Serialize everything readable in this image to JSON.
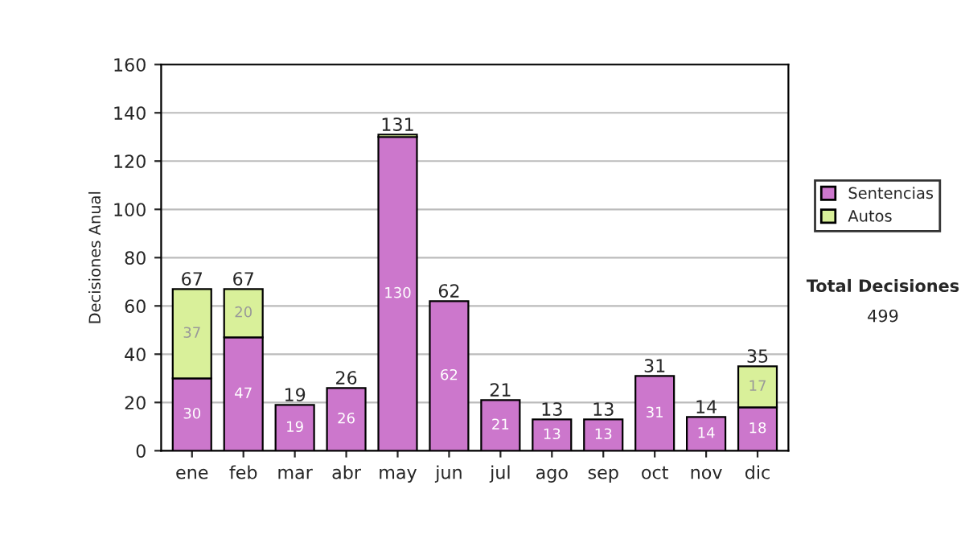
{
  "chart_data": {
    "type": "bar",
    "stacked": true,
    "ylabel": "Decisiones Anual",
    "categories": [
      "ene",
      "feb",
      "mar",
      "abr",
      "may",
      "jun",
      "jul",
      "ago",
      "sep",
      "oct",
      "nov",
      "dic"
    ],
    "series": [
      {
        "name": "Sentencias",
        "color": "#cc77cc",
        "values": [
          30,
          47,
          19,
          26,
          130,
          62,
          21,
          13,
          13,
          31,
          14,
          18
        ],
        "value_labels": [
          "30",
          "47",
          "19",
          "26",
          "130",
          "62",
          "21",
          "13",
          "13",
          "31",
          "14",
          "18"
        ]
      },
      {
        "name": "Autos",
        "color": "#d9f09a",
        "values": [
          37,
          20,
          0,
          0,
          1,
          0,
          0,
          0,
          0,
          0,
          0,
          17
        ],
        "value_labels": [
          "37",
          "20",
          null,
          null,
          null,
          null,
          null,
          null,
          null,
          null,
          null,
          "17"
        ]
      }
    ],
    "totals": [
      "67",
      "67",
      "19",
      "26",
      "131",
      "62",
      "21",
      "13",
      "13",
      "31",
      "14",
      "35"
    ],
    "ylim": [
      0,
      160
    ],
    "yticks": [
      0,
      20,
      40,
      60,
      80,
      100,
      120,
      140,
      160
    ],
    "grid": "y",
    "legend": "right",
    "annotations": [
      "Total Decisiones",
      "499"
    ]
  }
}
